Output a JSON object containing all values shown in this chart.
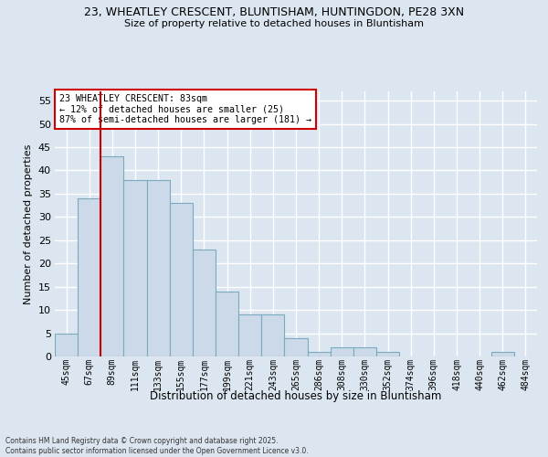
{
  "title_line1": "23, WHEATLEY CRESCENT, BLUNTISHAM, HUNTINGDON, PE28 3XN",
  "title_line2": "Size of property relative to detached houses in Bluntisham",
  "xlabel": "Distribution of detached houses by size in Bluntisham",
  "ylabel": "Number of detached properties",
  "bins": [
    "45sqm",
    "67sqm",
    "89sqm",
    "111sqm",
    "133sqm",
    "155sqm",
    "177sqm",
    "199sqm",
    "221sqm",
    "243sqm",
    "265sqm",
    "286sqm",
    "308sqm",
    "330sqm",
    "352sqm",
    "374sqm",
    "396sqm",
    "418sqm",
    "440sqm",
    "462sqm",
    "484sqm"
  ],
  "values": [
    5,
    34,
    43,
    38,
    38,
    33,
    23,
    14,
    9,
    9,
    4,
    1,
    2,
    2,
    1,
    0,
    0,
    0,
    0,
    1,
    0
  ],
  "bar_color": "#ccd9e8",
  "bar_edge_color": "#7aaabf",
  "vline_color": "#cc0000",
  "vline_x_index": 1.5,
  "annotation_text": "23 WHEATLEY CRESCENT: 83sqm\n← 12% of detached houses are smaller (25)\n87% of semi-detached houses are larger (181) →",
  "annotation_box_facecolor": "#ffffff",
  "annotation_box_edgecolor": "#cc0000",
  "ylim": [
    0,
    57
  ],
  "yticks": [
    0,
    5,
    10,
    15,
    20,
    25,
    30,
    35,
    40,
    45,
    50,
    55
  ],
  "background_color": "#dce6f0",
  "plot_bg_color": "#dce6f0",
  "grid_color": "#ffffff",
  "footer_line1": "Contains HM Land Registry data © Crown copyright and database right 2025.",
  "footer_line2": "Contains public sector information licensed under the Open Government Licence v3.0."
}
